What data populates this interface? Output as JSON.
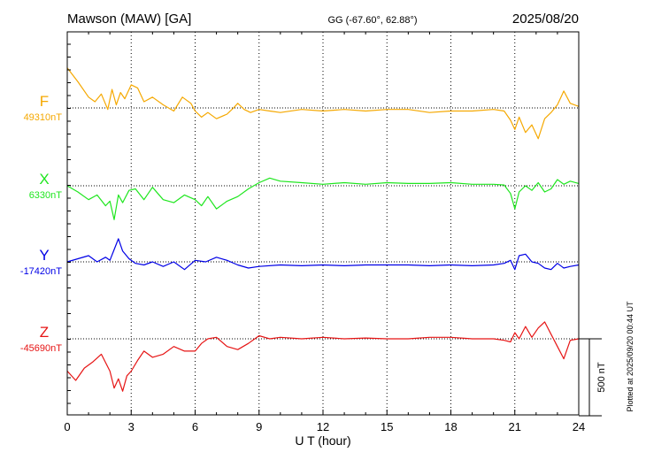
{
  "header": {
    "station": "Mawson (MAW)  [GA]",
    "coords": "GG (-67.60°,  62.88°)",
    "date": "2025/08/20"
  },
  "footer": {
    "plotted": "Plotted at 2025/09/20 00:44 UT"
  },
  "chart_data": {
    "type": "line",
    "xlabel": "U T (hour)",
    "xlim": [
      0,
      24
    ],
    "x_ticks": [
      "0",
      "3",
      "6",
      "9",
      "12",
      "15",
      "18",
      "21",
      "24"
    ],
    "grid": true,
    "scale_bar_label": "500 nT",
    "scale_bar_nT": 500,
    "series": [
      {
        "name": "F",
        "baseline_label": "49310nT",
        "baseline_nT": 49310,
        "color": "#f5a800",
        "x": [
          0,
          0.5,
          1,
          1.3,
          1.6,
          1.9,
          2.1,
          2.3,
          2.5,
          2.7,
          3.0,
          3.3,
          3.6,
          4.0,
          4.5,
          5.0,
          5.4,
          5.8,
          6.0,
          6.3,
          6.6,
          7.0,
          7.5,
          7.8,
          8.0,
          8.3,
          8.6,
          9.0,
          9.5,
          10.0,
          11.0,
          12.0,
          13.0,
          14.0,
          15.0,
          16.0,
          17.0,
          18.0,
          19.0,
          20.0,
          20.5,
          20.8,
          21.0,
          21.2,
          21.5,
          21.8,
          22.1,
          22.4,
          22.7,
          23.0,
          23.3,
          23.6,
          24.0
        ],
        "values": [
          49570,
          49480,
          49380,
          49350,
          49400,
          49300,
          49430,
          49330,
          49410,
          49370,
          49460,
          49440,
          49350,
          49380,
          49330,
          49290,
          49380,
          49340,
          49290,
          49250,
          49280,
          49240,
          49270,
          49310,
          49340,
          49300,
          49280,
          49300,
          49290,
          49280,
          49300,
          49290,
          49300,
          49290,
          49300,
          49300,
          49280,
          49290,
          49290,
          49300,
          49290,
          49230,
          49170,
          49250,
          49150,
          49200,
          49110,
          49240,
          49280,
          49330,
          49420,
          49340,
          49320
        ]
      },
      {
        "name": "X",
        "baseline_label": "6330nT",
        "baseline_nT": 6330,
        "color": "#1ee61e",
        "x": [
          0,
          0.5,
          1,
          1.4,
          1.8,
          2.0,
          2.2,
          2.4,
          2.6,
          2.9,
          3.2,
          3.6,
          4.0,
          4.5,
          5.0,
          5.5,
          6.0,
          6.3,
          6.6,
          7.0,
          7.5,
          8.0,
          8.5,
          9.0,
          9.5,
          10.0,
          11.0,
          12.0,
          13.0,
          14.0,
          15.0,
          16.0,
          17.0,
          18.0,
          19.0,
          20.0,
          20.5,
          20.8,
          21.0,
          21.2,
          21.5,
          21.8,
          22.1,
          22.4,
          22.7,
          23.0,
          23.3,
          23.6,
          24.0
        ],
        "values": [
          6330,
          6290,
          6240,
          6270,
          6200,
          6230,
          6110,
          6270,
          6220,
          6300,
          6310,
          6240,
          6320,
          6240,
          6220,
          6270,
          6240,
          6200,
          6260,
          6180,
          6230,
          6260,
          6310,
          6350,
          6380,
          6360,
          6350,
          6340,
          6350,
          6340,
          6350,
          6345,
          6345,
          6350,
          6340,
          6340,
          6335,
          6280,
          6180,
          6290,
          6330,
          6300,
          6350,
          6290,
          6310,
          6370,
          6340,
          6360,
          6345
        ]
      },
      {
        "name": "Y",
        "baseline_label": "-17420nT",
        "baseline_nT": -17420,
        "color": "#0000e6",
        "x": [
          0,
          0.5,
          1.0,
          1.4,
          1.8,
          2.0,
          2.2,
          2.4,
          2.6,
          2.9,
          3.2,
          3.6,
          4.0,
          4.5,
          5.0,
          5.5,
          6.0,
          6.5,
          7.0,
          7.5,
          8.0,
          8.5,
          9.0,
          10.0,
          11.0,
          12.0,
          13.0,
          14.0,
          15.0,
          16.0,
          17.0,
          18.0,
          19.0,
          20.0,
          20.5,
          20.8,
          21.0,
          21.2,
          21.5,
          21.8,
          22.1,
          22.4,
          22.7,
          23.0,
          23.3,
          23.6,
          24.0
        ],
        "values": [
          -17420,
          -17400,
          -17380,
          -17420,
          -17390,
          -17410,
          -17340,
          -17270,
          -17350,
          -17400,
          -17430,
          -17440,
          -17420,
          -17450,
          -17420,
          -17470,
          -17410,
          -17420,
          -17390,
          -17410,
          -17440,
          -17460,
          -17450,
          -17440,
          -17445,
          -17440,
          -17445,
          -17440,
          -17440,
          -17440,
          -17445,
          -17440,
          -17445,
          -17440,
          -17430,
          -17410,
          -17470,
          -17380,
          -17370,
          -17420,
          -17430,
          -17460,
          -17470,
          -17430,
          -17460,
          -17450,
          -17440
        ]
      },
      {
        "name": "Z",
        "baseline_label": "-45690nT",
        "baseline_nT": -45690,
        "color": "#e61414",
        "x": [
          0,
          0.4,
          0.8,
          1.2,
          1.6,
          2.0,
          2.2,
          2.4,
          2.6,
          2.8,
          3.0,
          3.3,
          3.6,
          4.0,
          4.5,
          5.0,
          5.5,
          6.0,
          6.3,
          6.6,
          7.0,
          7.5,
          8.0,
          8.5,
          9.0,
          9.5,
          10.0,
          11.0,
          12.0,
          13.0,
          14.0,
          15.0,
          16.0,
          17.0,
          18.0,
          19.0,
          20.0,
          20.5,
          20.8,
          21.0,
          21.2,
          21.5,
          21.8,
          22.1,
          22.4,
          22.7,
          23.0,
          23.3,
          23.6,
          24.0
        ],
        "values": [
          -45900,
          -45960,
          -45880,
          -45840,
          -45790,
          -45900,
          -46010,
          -45950,
          -46030,
          -45930,
          -45900,
          -45830,
          -45770,
          -45810,
          -45790,
          -45740,
          -45770,
          -45770,
          -45720,
          -45690,
          -45680,
          -45740,
          -45760,
          -45720,
          -45670,
          -45690,
          -45680,
          -45690,
          -45680,
          -45690,
          -45685,
          -45690,
          -45690,
          -45680,
          -45680,
          -45690,
          -45690,
          -45700,
          -45710,
          -45650,
          -45690,
          -45610,
          -45680,
          -45620,
          -45580,
          -45660,
          -45740,
          -45820,
          -45700,
          -45690
        ]
      }
    ]
  }
}
